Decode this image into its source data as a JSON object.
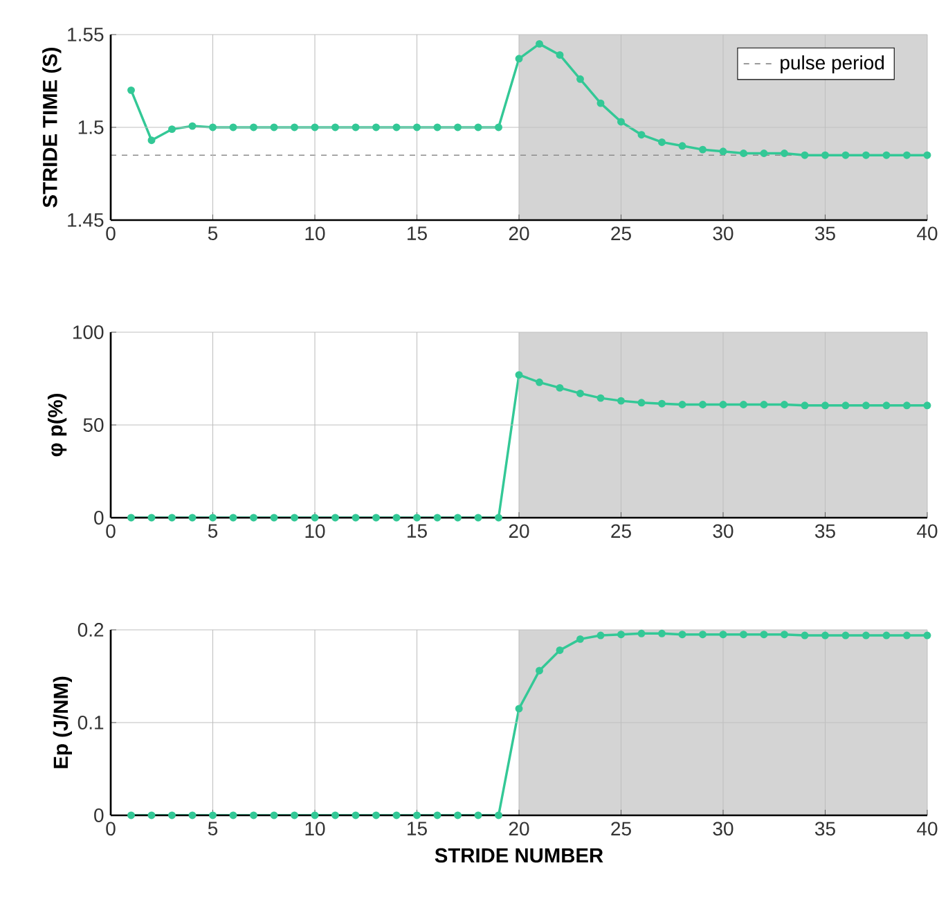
{
  "chart_data": [
    {
      "type": "line",
      "ylabel": "STRIDE TIME (S)",
      "x": [
        1,
        2,
        3,
        4,
        5,
        6,
        7,
        8,
        9,
        10,
        11,
        12,
        13,
        14,
        15,
        16,
        17,
        18,
        19,
        20,
        21,
        22,
        23,
        24,
        25,
        26,
        27,
        28,
        29,
        30,
        31,
        32,
        33,
        34,
        35,
        36,
        37,
        38,
        39,
        40
      ],
      "series": [
        {
          "color": "#33c896",
          "values": [
            1.52,
            1.493,
            1.499,
            1.5007,
            1.5,
            1.5,
            1.5,
            1.5,
            1.5,
            1.5,
            1.5,
            1.5,
            1.5,
            1.5,
            1.5,
            1.5,
            1.5,
            1.5,
            1.5,
            1.537,
            1.545,
            1.539,
            1.526,
            1.513,
            1.503,
            1.496,
            1.492,
            1.49,
            1.488,
            1.487,
            1.486,
            1.486,
            1.486,
            1.485,
            1.485,
            1.485,
            1.485,
            1.485,
            1.485,
            1.485
          ]
        }
      ],
      "xlim": [
        0,
        40
      ],
      "xticks": [
        0,
        5,
        10,
        15,
        20,
        25,
        30,
        35,
        40
      ],
      "ylim": [
        1.45,
        1.55
      ],
      "yticks": [
        1.45,
        1.5,
        1.55
      ],
      "ref_lines": [
        {
          "axis": "y",
          "value": 1.485,
          "label": "pulse period",
          "color": "#8c8c8c",
          "line_style": "dashed"
        }
      ],
      "bands": [
        {
          "axis": "x",
          "from": 20,
          "to": 40,
          "color": "#d4d4d4"
        }
      ],
      "grid": true,
      "legend": "top right",
      "marker": "circle",
      "line_style": "solid"
    },
    {
      "type": "line",
      "ylabel": "φ p(%)",
      "x": [
        1,
        2,
        3,
        4,
        5,
        6,
        7,
        8,
        9,
        10,
        11,
        12,
        13,
        14,
        15,
        16,
        17,
        18,
        19,
        20,
        21,
        22,
        23,
        24,
        25,
        26,
        27,
        28,
        29,
        30,
        31,
        32,
        33,
        34,
        35,
        36,
        37,
        38,
        39,
        40
      ],
      "series": [
        {
          "color": "#33c896",
          "values": [
            0,
            0,
            0,
            0,
            0,
            0,
            0,
            0,
            0,
            0,
            0,
            0,
            0,
            0,
            0,
            0,
            0,
            0,
            0,
            77,
            73,
            70,
            67,
            64.5,
            63,
            62,
            61.5,
            61,
            61,
            61,
            61,
            61,
            61,
            60.5,
            60.5,
            60.5,
            60.5,
            60.5,
            60.5,
            60.5
          ]
        }
      ],
      "xlim": [
        0,
        40
      ],
      "xticks": [
        0,
        5,
        10,
        15,
        20,
        25,
        30,
        35,
        40
      ],
      "ylim": [
        0,
        100
      ],
      "yticks": [
        0,
        50,
        100
      ],
      "bands": [
        {
          "axis": "x",
          "from": 20,
          "to": 40,
          "color": "#d4d4d4"
        }
      ],
      "grid": true,
      "marker": "circle",
      "line_style": "solid"
    },
    {
      "type": "line",
      "xlabel": "STRIDE NUMBER",
      "ylabel": "Ep (J/NM)",
      "x": [
        1,
        2,
        3,
        4,
        5,
        6,
        7,
        8,
        9,
        10,
        11,
        12,
        13,
        14,
        15,
        16,
        17,
        18,
        19,
        20,
        21,
        22,
        23,
        24,
        25,
        26,
        27,
        28,
        29,
        30,
        31,
        32,
        33,
        34,
        35,
        36,
        37,
        38,
        39,
        40
      ],
      "series": [
        {
          "color": "#33c896",
          "values": [
            0,
            0,
            0,
            0,
            0,
            0,
            0,
            0,
            0,
            0,
            0,
            0,
            0,
            0,
            0,
            0,
            0,
            0,
            0,
            0.115,
            0.156,
            0.178,
            0.19,
            0.194,
            0.195,
            0.196,
            0.196,
            0.195,
            0.195,
            0.195,
            0.195,
            0.195,
            0.195,
            0.194,
            0.194,
            0.194,
            0.194,
            0.194,
            0.194,
            0.194
          ]
        }
      ],
      "xlim": [
        0,
        40
      ],
      "xticks": [
        0,
        5,
        10,
        15,
        20,
        25,
        30,
        35,
        40
      ],
      "ylim": [
        0,
        0.2
      ],
      "yticks": [
        0,
        0.1,
        0.2
      ],
      "bands": [
        {
          "axis": "x",
          "from": 20,
          "to": 40,
          "color": "#d4d4d4"
        }
      ],
      "grid": true,
      "marker": "circle",
      "line_style": "solid"
    }
  ]
}
